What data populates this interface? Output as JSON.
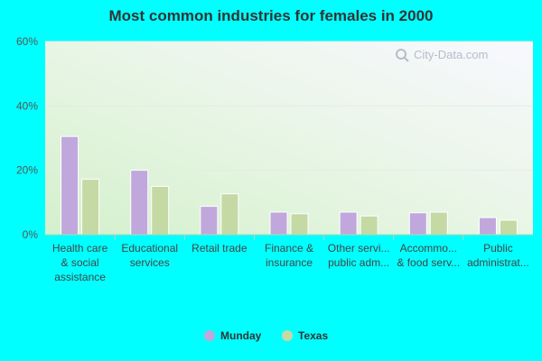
{
  "chart_data": {
    "type": "bar",
    "title": "Most common industries for females in 2000",
    "categories": [
      [
        "Health care",
        "& social",
        "assistance"
      ],
      [
        "Educational",
        "services"
      ],
      [
        "Retail trade"
      ],
      [
        "Finance &",
        "insurance"
      ],
      [
        "Other servi...",
        "public adm..."
      ],
      [
        "Accommo...",
        "& food serv..."
      ],
      [
        "Public",
        "administrat..."
      ]
    ],
    "series": [
      {
        "name": "Munday",
        "color": "#c0a8dc",
        "values": [
          30.5,
          20.0,
          8.8,
          7.0,
          7.0,
          6.8,
          5.3
        ]
      },
      {
        "name": "Texas",
        "color": "#c5d9a5",
        "values": [
          17.2,
          15.0,
          12.7,
          6.5,
          5.8,
          7.0,
          4.5
        ]
      }
    ],
    "ylim": [
      0,
      60
    ],
    "yticks": [
      "0%",
      "20%",
      "40%",
      "60%"
    ],
    "ytick_values": [
      0,
      20,
      40,
      60
    ],
    "grid": true,
    "legend_position": "bottom-center",
    "watermark": "City-Data.com"
  }
}
